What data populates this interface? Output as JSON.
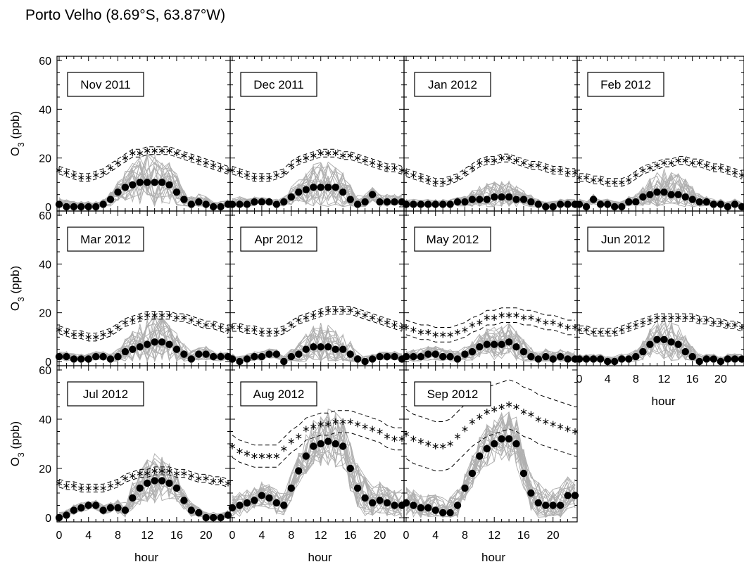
{
  "header": {
    "title": "Porto Velho (8.69°S, 63.87°W)"
  },
  "chart_data": {
    "type": "line",
    "layout": "small-multiples 3x4",
    "xlabel": "hour",
    "ylabel": "O3 (ppb)",
    "xlim": [
      0,
      23
    ],
    "ylim": [
      0,
      60
    ],
    "xticks": [
      "0",
      "4",
      "8",
      "12",
      "16",
      "20"
    ],
    "yticks": [
      "0",
      "20",
      "40",
      "60"
    ],
    "series_legend": {
      "stars": "star markers with dashed envelope",
      "dots": "filled circle markers",
      "thin_lines": "gray daily profiles"
    },
    "colors": {
      "stars": "#000000",
      "dots": "#000000",
      "individual_days": "#b0b0b0",
      "envelope": "#000000"
    },
    "panels": [
      {
        "label": "Nov 2011",
        "stars": [
          15,
          14,
          13,
          12,
          12,
          13,
          14,
          16,
          18,
          20,
          22,
          22,
          23,
          23,
          23,
          23,
          22,
          21,
          20,
          19,
          18,
          17,
          16,
          15
        ],
        "dots": [
          1,
          0,
          0,
          0,
          0,
          0,
          1,
          3,
          6,
          8,
          9,
          10,
          10,
          10,
          10,
          9,
          6,
          3,
          1,
          2,
          1,
          0,
          0,
          1
        ],
        "spread": [
          3,
          3,
          2,
          2,
          2,
          2,
          2,
          3,
          4,
          6,
          8,
          10,
          11,
          11,
          10,
          9,
          7,
          4,
          3,
          3,
          3,
          2,
          2,
          2
        ]
      },
      {
        "label": "Dec 2011",
        "stars": [
          15,
          14,
          13,
          12,
          12,
          12,
          13,
          14,
          17,
          19,
          20,
          21,
          22,
          22,
          22,
          21,
          21,
          20,
          19,
          18,
          17,
          16,
          16,
          15
        ],
        "dots": [
          1,
          1,
          1,
          2,
          2,
          2,
          1,
          2,
          4,
          6,
          7,
          8,
          8,
          8,
          8,
          6,
          3,
          1,
          2,
          5,
          2,
          2,
          2,
          2
        ],
        "spread": [
          3,
          3,
          2,
          2,
          2,
          2,
          2,
          3,
          4,
          5,
          7,
          9,
          10,
          10,
          9,
          8,
          6,
          4,
          3,
          3,
          3,
          3,
          3,
          3
        ]
      },
      {
        "label": "Jan 2012",
        "stars": [
          14,
          13,
          12,
          11,
          10,
          10,
          11,
          12,
          14,
          16,
          18,
          19,
          19,
          20,
          20,
          19,
          18,
          17,
          17,
          16,
          15,
          15,
          14,
          14
        ],
        "dots": [
          1,
          1,
          1,
          1,
          1,
          1,
          1,
          2,
          2,
          3,
          3,
          3,
          4,
          4,
          4,
          3,
          3,
          2,
          1,
          0,
          0,
          1,
          1,
          1
        ],
        "spread": [
          2,
          2,
          2,
          2,
          2,
          2,
          2,
          2,
          3,
          4,
          5,
          6,
          6,
          6,
          6,
          5,
          4,
          3,
          2,
          2,
          2,
          2,
          2,
          2
        ]
      },
      {
        "label": "Feb 2012",
        "stars": [
          12,
          12,
          11,
          11,
          10,
          10,
          10,
          11,
          13,
          15,
          16,
          17,
          18,
          18,
          19,
          19,
          18,
          18,
          17,
          16,
          16,
          15,
          14,
          13
        ],
        "dots": [
          1,
          0,
          3,
          1,
          1,
          0,
          0,
          2,
          2,
          4,
          5,
          6,
          6,
          5,
          5,
          4,
          3,
          2,
          2,
          1,
          1,
          0,
          1,
          0
        ],
        "spread": [
          2,
          2,
          2,
          2,
          2,
          2,
          2,
          2,
          3,
          4,
          6,
          8,
          9,
          9,
          8,
          7,
          5,
          3,
          2,
          2,
          2,
          2,
          2,
          2
        ]
      },
      {
        "label": "Mar 2012",
        "stars": [
          13,
          12,
          11,
          11,
          10,
          10,
          11,
          12,
          14,
          16,
          17,
          18,
          19,
          19,
          19,
          19,
          18,
          18,
          17,
          16,
          15,
          15,
          14,
          13
        ],
        "dots": [
          2,
          2,
          1,
          1,
          1,
          2,
          2,
          1,
          2,
          4,
          5,
          6,
          7,
          8,
          8,
          7,
          5,
          3,
          1,
          3,
          3,
          2,
          2,
          2
        ],
        "spread": [
          2,
          2,
          2,
          2,
          2,
          2,
          2,
          2,
          3,
          5,
          7,
          9,
          11,
          11,
          10,
          8,
          6,
          4,
          3,
          3,
          3,
          2,
          2,
          2
        ]
      },
      {
        "label": "Apr 2012",
        "stars": [
          14,
          14,
          13,
          13,
          12,
          12,
          12,
          13,
          15,
          17,
          18,
          19,
          20,
          21,
          21,
          21,
          21,
          20,
          19,
          18,
          17,
          16,
          15,
          14
        ],
        "dots": [
          1,
          0,
          1,
          2,
          2,
          3,
          3,
          0,
          2,
          3,
          5,
          6,
          6,
          6,
          5,
          5,
          3,
          1,
          0,
          1,
          2,
          2,
          2,
          1
        ],
        "spread": [
          2,
          2,
          2,
          2,
          2,
          2,
          2,
          2,
          3,
          4,
          6,
          8,
          9,
          9,
          9,
          7,
          5,
          3,
          2,
          2,
          2,
          2,
          2,
          2
        ]
      },
      {
        "label": "May 2012",
        "stars": [
          14,
          13,
          12,
          12,
          11,
          11,
          11,
          12,
          13,
          15,
          16,
          18,
          18,
          19,
          19,
          19,
          18,
          18,
          17,
          16,
          16,
          15,
          14,
          14
        ],
        "dots": [
          2,
          2,
          2,
          3,
          3,
          2,
          2,
          1,
          3,
          4,
          6,
          7,
          7,
          7,
          8,
          6,
          4,
          2,
          1,
          2,
          1,
          2,
          1,
          1
        ],
        "spread": [
          3,
          3,
          3,
          3,
          3,
          3,
          3,
          3,
          3,
          4,
          5,
          6,
          7,
          7,
          7,
          6,
          5,
          4,
          3,
          3,
          3,
          3,
          3,
          3
        ]
      },
      {
        "label": "Jun 2012",
        "stars": [
          13,
          13,
          12,
          12,
          12,
          12,
          13,
          14,
          15,
          16,
          17,
          18,
          18,
          18,
          18,
          18,
          18,
          17,
          17,
          16,
          16,
          15,
          15,
          14
        ],
        "dots": [
          1,
          1,
          1,
          1,
          0,
          0,
          1,
          1,
          2,
          4,
          7,
          9,
          9,
          8,
          7,
          4,
          2,
          0,
          1,
          1,
          0,
          1,
          1,
          1
        ],
        "spread": [
          2,
          2,
          2,
          2,
          2,
          2,
          2,
          2,
          3,
          4,
          6,
          8,
          9,
          9,
          8,
          6,
          4,
          3,
          2,
          2,
          2,
          2,
          2,
          2
        ]
      },
      {
        "label": "Jul 2012",
        "stars": [
          14,
          13,
          13,
          12,
          12,
          12,
          12,
          13,
          14,
          16,
          17,
          18,
          18,
          19,
          19,
          19,
          18,
          18,
          17,
          16,
          16,
          15,
          15,
          14
        ],
        "dots": [
          0,
          1,
          3,
          4,
          5,
          5,
          3,
          4,
          4,
          3,
          8,
          12,
          14,
          15,
          15,
          14,
          12,
          7,
          3,
          2,
          0,
          0,
          0,
          1
        ],
        "spread": [
          2,
          2,
          2,
          2,
          2,
          2,
          2,
          2,
          3,
          4,
          6,
          8,
          9,
          10,
          9,
          8,
          6,
          4,
          3,
          2,
          2,
          2,
          2,
          2
        ]
      },
      {
        "label": "Aug 2012",
        "stars": [
          29,
          27,
          26,
          25,
          25,
          25,
          25,
          28,
          31,
          33,
          36,
          37,
          38,
          38,
          39,
          39,
          39,
          38,
          37,
          36,
          35,
          33,
          32,
          32
        ],
        "dots": [
          4,
          5,
          6,
          7,
          9,
          8,
          6,
          5,
          12,
          19,
          25,
          29,
          30,
          31,
          30,
          29,
          20,
          12,
          8,
          6,
          7,
          6,
          5,
          5
        ],
        "spread": [
          5,
          5,
          5,
          5,
          5,
          5,
          5,
          5,
          6,
          7,
          8,
          10,
          11,
          12,
          12,
          11,
          10,
          9,
          8,
          7,
          7,
          6,
          6,
          6
        ]
      },
      {
        "label": "Sep 2012",
        "stars": [
          34,
          32,
          31,
          30,
          29,
          29,
          30,
          33,
          36,
          39,
          41,
          43,
          44,
          45,
          46,
          45,
          43,
          42,
          40,
          39,
          38,
          37,
          36,
          35
        ],
        "dots": [
          6,
          5,
          4,
          4,
          3,
          2,
          2,
          5,
          12,
          18,
          25,
          28,
          30,
          32,
          32,
          30,
          18,
          10,
          6,
          5,
          5,
          5,
          9,
          9
        ],
        "spread": [
          6,
          6,
          6,
          6,
          6,
          6,
          6,
          6,
          6,
          7,
          8,
          9,
          10,
          10,
          10,
          10,
          9,
          8,
          8,
          7,
          7,
          7,
          7,
          7
        ]
      }
    ]
  }
}
